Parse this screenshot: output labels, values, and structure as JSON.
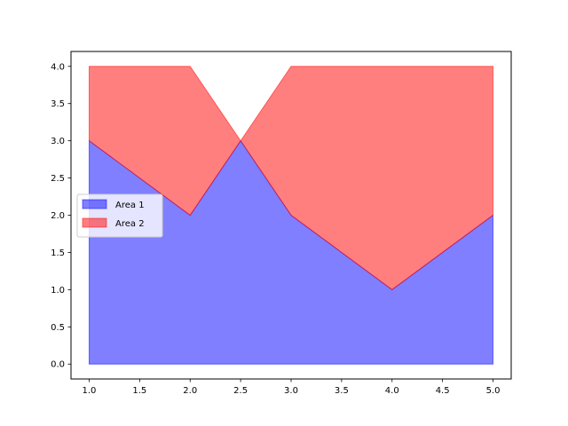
{
  "chart_data": {
    "type": "area",
    "title": "",
    "xlabel": "",
    "ylabel": "",
    "xlim": [
      0.82,
      5.18
    ],
    "ylim": [
      -0.2,
      4.2
    ],
    "xticks": [
      "1.0",
      "1.5",
      "2.0",
      "2.5",
      "3.0",
      "3.5",
      "4.0",
      "4.5",
      "5.0"
    ],
    "yticks": [
      "0.0",
      "0.5",
      "1.0",
      "1.5",
      "2.0",
      "2.5",
      "3.0",
      "3.5",
      "4.0"
    ],
    "grid": false,
    "legend_position": "center-left",
    "series": [
      {
        "name": "Area 1",
        "color": "#0000ff",
        "alpha": 0.5,
        "fill_between": "zero",
        "x": [
          1,
          2,
          2.5,
          3,
          4,
          5
        ],
        "y": [
          3,
          2,
          3,
          2,
          1,
          2
        ]
      },
      {
        "name": "Area 2",
        "color": "#ff0000",
        "alpha": 0.5,
        "fill_between": "Area 1",
        "x": [
          1,
          2,
          2.5,
          3,
          4,
          5
        ],
        "y": [
          4,
          4,
          3,
          4,
          4,
          4
        ]
      }
    ]
  }
}
